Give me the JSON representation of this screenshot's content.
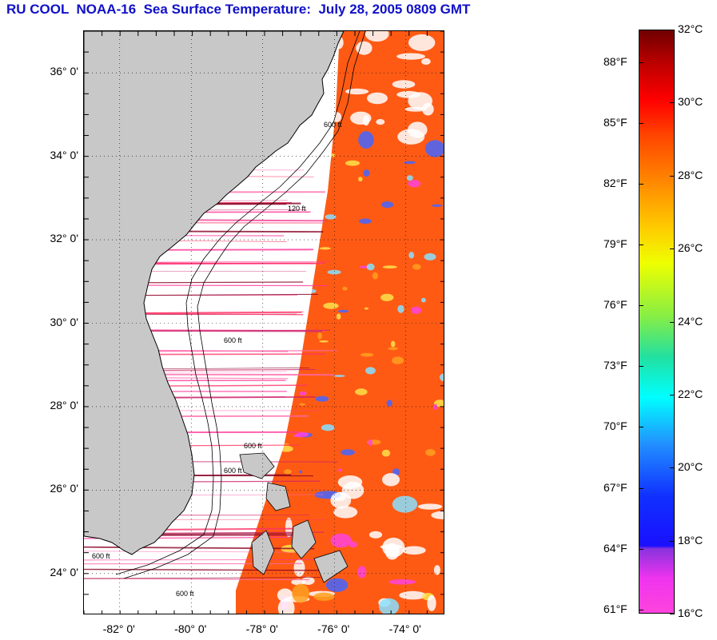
{
  "title": "RU COOL  NOAA-16  Sea Surface Temperature:  July 28, 2005 0809 GMT",
  "map": {
    "lat_ticks": [
      {
        "label": "36° 0'",
        "lat": 36
      },
      {
        "label": "34° 0'",
        "lat": 34
      },
      {
        "label": "32° 0'",
        "lat": 32
      },
      {
        "label": "30° 0'",
        "lat": 30
      },
      {
        "label": "28° 0'",
        "lat": 28
      },
      {
        "label": "26° 0'",
        "lat": 26
      },
      {
        "label": "24° 0'",
        "lat": 24
      }
    ],
    "lon_ticks": [
      {
        "label": "-82° 0'",
        "lon": -82
      },
      {
        "label": "-80° 0'",
        "lon": -80
      },
      {
        "label": "-78° 0'",
        "lon": -78
      },
      {
        "label": "-76° 0'",
        "lon": -76
      },
      {
        "label": "-74° 0'",
        "lon": -74
      }
    ],
    "lat_range": [
      23.0,
      37.0
    ],
    "lon_range": [
      -83.0,
      -72.9
    ],
    "contour_labels": [
      "600 ft",
      "120 ft",
      "600 ft",
      "600 ft",
      "600 ft",
      "600 ft",
      "600 ft"
    ],
    "colors": {
      "land": "#c8c8c8",
      "ocean_warm": "#ff5a14",
      "cloud": "#ffffff"
    }
  },
  "colorbar": {
    "celsius": [
      {
        "label": "32°C",
        "value": 32
      },
      {
        "label": "30°C",
        "value": 30
      },
      {
        "label": "28°C",
        "value": 28
      },
      {
        "label": "26°C",
        "value": 26
      },
      {
        "label": "24°C",
        "value": 24
      },
      {
        "label": "22°C",
        "value": 22
      },
      {
        "label": "20°C",
        "value": 20
      },
      {
        "label": "18°C",
        "value": 18
      },
      {
        "label": "16°C",
        "value": 16
      }
    ],
    "fahrenheit": [
      {
        "label": "88°F",
        "value": 88
      },
      {
        "label": "85°F",
        "value": 85
      },
      {
        "label": "82°F",
        "value": 82
      },
      {
        "label": "79°F",
        "value": 79
      },
      {
        "label": "76°F",
        "value": 76
      },
      {
        "label": "73°F",
        "value": 73
      },
      {
        "label": "70°F",
        "value": 70
      },
      {
        "label": "67°F",
        "value": 67
      },
      {
        "label": "64°F",
        "value": 64
      },
      {
        "label": "61°F",
        "value": 61
      }
    ],
    "range_c": [
      16,
      32
    ]
  }
}
